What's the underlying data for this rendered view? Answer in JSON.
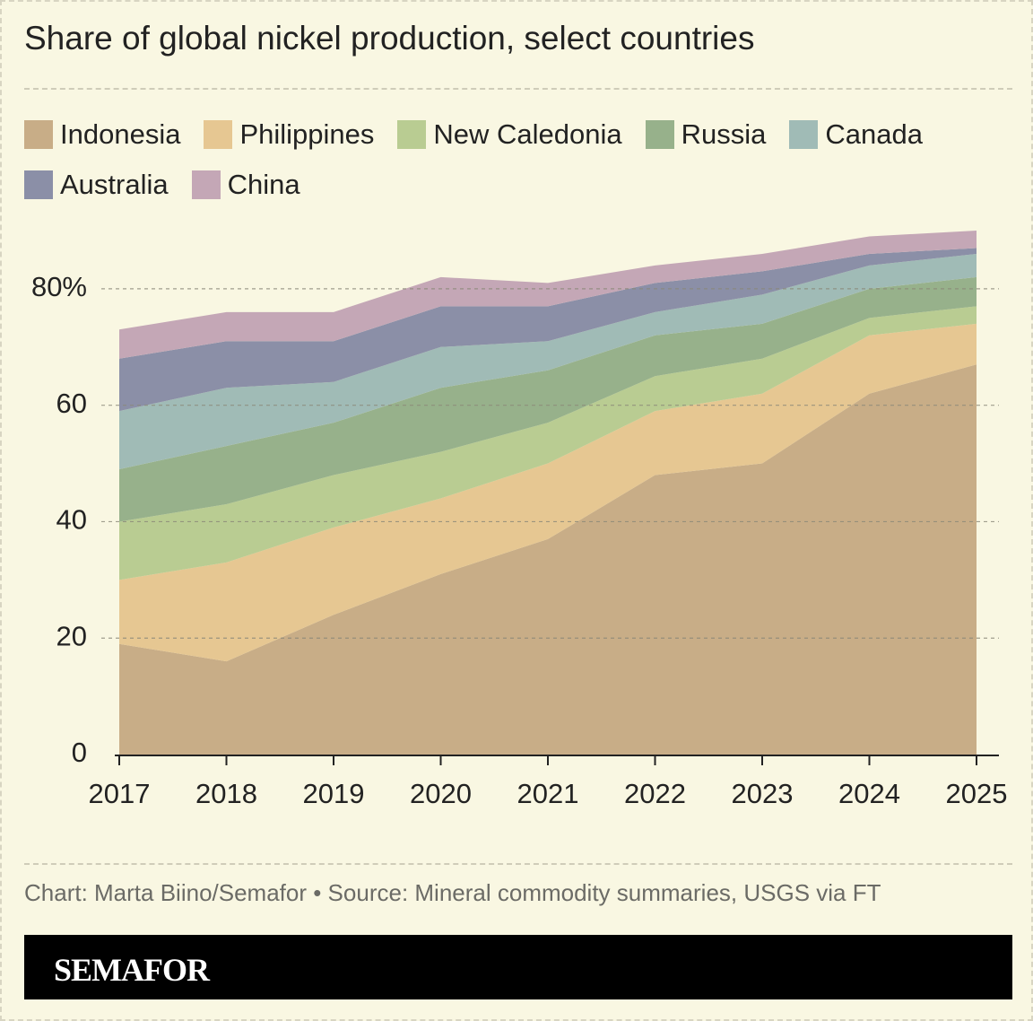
{
  "chart_data": {
    "type": "stacked-area",
    "title": "Share of global nickel production, select countries",
    "x": [
      2017,
      2018,
      2019,
      2020,
      2021,
      2022,
      2023,
      2024,
      2025
    ],
    "xlim": [
      2017,
      2025
    ],
    "xticks": [
      2017,
      2018,
      2019,
      2020,
      2021,
      2022,
      2023,
      2024,
      2025
    ],
    "ylim": [
      0,
      90
    ],
    "yticks": [
      0,
      20,
      40,
      60,
      {
        "value": 80,
        "label": "80%"
      }
    ],
    "grid": true,
    "series": [
      {
        "name": "Indonesia",
        "color": "#c8ad87",
        "values": [
          19,
          16,
          24,
          31,
          37,
          48,
          50,
          62,
          67
        ]
      },
      {
        "name": "Philippines",
        "color": "#e6c792",
        "values": [
          11,
          17,
          15,
          13,
          13,
          11,
          12,
          10,
          7
        ]
      },
      {
        "name": "New Caledonia",
        "color": "#b9cc92",
        "values": [
          10,
          10,
          9,
          8,
          7,
          6,
          6,
          3,
          3
        ]
      },
      {
        "name": "Russia",
        "color": "#97b18b",
        "values": [
          9,
          10,
          9,
          11,
          9,
          7,
          6,
          5,
          5
        ]
      },
      {
        "name": "Canada",
        "color": "#a0bbb6",
        "values": [
          10,
          10,
          7,
          7,
          5,
          4,
          5,
          4,
          4
        ]
      },
      {
        "name": "Australia",
        "color": "#8b8fa7",
        "values": [
          9,
          8,
          7,
          7,
          6,
          5,
          4,
          2,
          1
        ]
      },
      {
        "name": "China",
        "color": "#c4a7b6",
        "values": [
          5,
          5,
          5,
          5,
          4,
          3,
          3,
          3,
          3
        ]
      }
    ]
  },
  "source": "Chart: Marta Biino/Semafor • Source: Mineral commodity summaries, USGS via FT",
  "brand": "SEMAFOR"
}
